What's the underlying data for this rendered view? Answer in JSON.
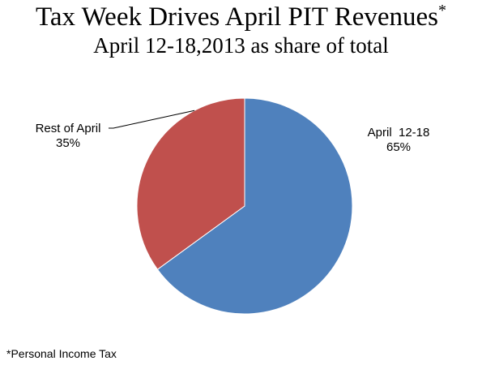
{
  "chart_data": {
    "type": "pie",
    "title": "Tax Week Drives April PIT Revenues",
    "title_marker": "*",
    "subtitle": "April 12-18,2013  as share of total",
    "slices": [
      {
        "label": "April  12-18",
        "value": 65,
        "value_label": "65%",
        "color": "#4f81bd"
      },
      {
        "label": "Rest of April",
        "value": 35,
        "value_label": "35%",
        "color": "#c0504d"
      }
    ],
    "legend": "none",
    "start": "top",
    "direction": "clockwise"
  },
  "footnote": "*Personal Income Tax"
}
